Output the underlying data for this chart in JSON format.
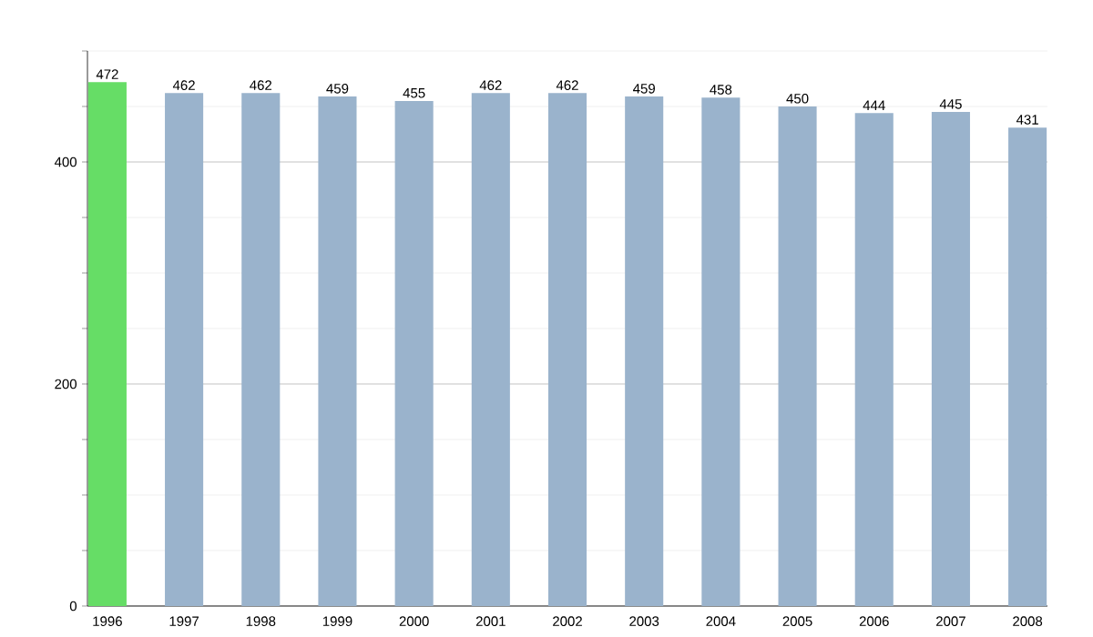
{
  "chart_data": {
    "type": "bar",
    "categories": [
      "1996",
      "1997",
      "1998",
      "1999",
      "2000",
      "2001",
      "2002",
      "2003",
      "2004",
      "2005",
      "2006",
      "2007",
      "2008"
    ],
    "values": [
      472,
      462,
      462,
      459,
      455,
      462,
      462,
      459,
      458,
      450,
      444,
      445,
      431
    ],
    "colors": [
      "#66dd66",
      "#9ab3cc",
      "#9ab3cc",
      "#9ab3cc",
      "#9ab3cc",
      "#9ab3cc",
      "#9ab3cc",
      "#9ab3cc",
      "#9ab3cc",
      "#9ab3cc",
      "#9ab3cc",
      "#9ab3cc",
      "#9ab3cc"
    ],
    "ylim": [
      0,
      500
    ],
    "yticks": [
      0,
      {
        "value": 50,
        "label": null
      },
      {
        "value": 100,
        "label": null
      },
      {
        "value": 150,
        "label": null
      },
      200,
      {
        "value": 250,
        "label": null
      },
      {
        "value": 300,
        "label": null
      },
      {
        "value": 350,
        "label": null
      },
      400,
      {
        "value": 450,
        "label": null
      },
      {
        "value": 500,
        "label": null
      }
    ],
    "grid": "y",
    "data_labels": true
  }
}
